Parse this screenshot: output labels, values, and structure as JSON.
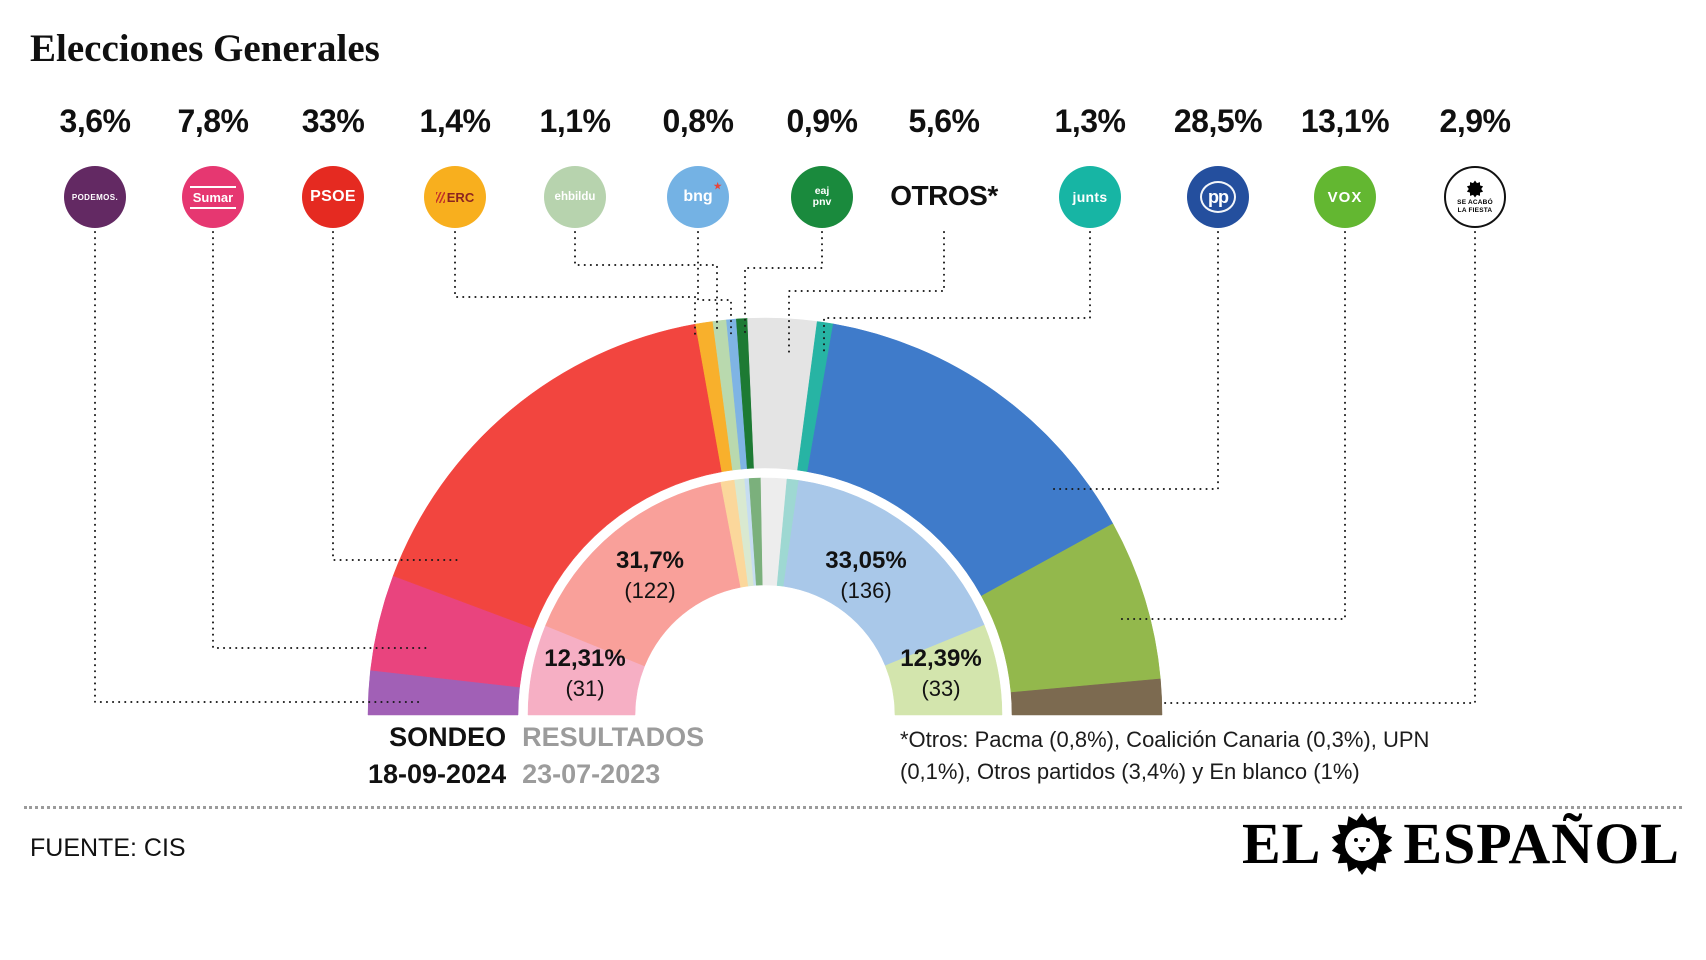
{
  "title": "Elecciones Generales",
  "parties": [
    {
      "id": "podemos",
      "name": "Podemos",
      "pct": "3,6%",
      "logo_text": "PODEMOS.",
      "logo_bg": "#632963"
    },
    {
      "id": "sumar",
      "name": "Sumar",
      "pct": "7,8%",
      "logo_text": "Sumar",
      "logo_bg": "#e63771"
    },
    {
      "id": "psoe",
      "name": "PSOE",
      "pct": "33%",
      "logo_text": "PSOE",
      "logo_bg": "#e52a21"
    },
    {
      "id": "erc",
      "name": "ERC",
      "pct": "1,4%",
      "logo_text": "ERC",
      "logo_bg": "#f8af1e"
    },
    {
      "id": "bildu",
      "name": "EH Bildu",
      "pct": "1,1%",
      "logo_text": "ehbildu",
      "logo_bg": "#b7d3ae"
    },
    {
      "id": "bng",
      "name": "BNG",
      "pct": "0,8%",
      "logo_text": "bng",
      "logo_bg": "#74b2e4"
    },
    {
      "id": "pnv",
      "name": "EAJ-PNV",
      "pct": "0,9%",
      "logo_line1": "eaj",
      "logo_line2": "pnv",
      "logo_bg": "#1a8a3d"
    },
    {
      "id": "otros",
      "name": "Otros",
      "pct": "5,6%",
      "label": "OTROS*"
    },
    {
      "id": "junts",
      "name": "Junts",
      "pct": "1,3%",
      "logo_text": "junts",
      "logo_bg": "#17b5a4"
    },
    {
      "id": "pp",
      "name": "PP",
      "pct": "28,5%",
      "logo_text": "pp",
      "logo_bg": "#244f9e"
    },
    {
      "id": "vox",
      "name": "Vox",
      "pct": "13,1%",
      "logo_text": "VOX",
      "logo_bg": "#63b731"
    },
    {
      "id": "salf",
      "name": "Se Acabó La Fiesta",
      "pct": "2,9%",
      "logo_line1": "SE ACABÓ",
      "logo_line2": "LA FIESTA",
      "logo_bg": "#ffffff"
    }
  ],
  "icons": {
    "bng_star": "★"
  },
  "chart_data": {
    "type": "half-donut",
    "title": "Elecciones Generales",
    "unit": "% de voto",
    "series": [
      {
        "name": "Sondeo 18-09-2024",
        "ring": "outer",
        "points": [
          {
            "party": "Podemos",
            "value": 3.6,
            "color": "#a160b6"
          },
          {
            "party": "Sumar",
            "value": 7.8,
            "color": "#e9447e"
          },
          {
            "party": "PSOE",
            "value": 33,
            "color": "#f2453f"
          },
          {
            "party": "ERC",
            "value": 1.4,
            "color": "#f8b02c"
          },
          {
            "party": "EH Bildu",
            "value": 1.1,
            "color": "#b9d9ae"
          },
          {
            "party": "BNG",
            "value": 0.8,
            "color": "#7fb4e4"
          },
          {
            "party": "EAJ PNV",
            "value": 0.9,
            "color": "#1d7a33"
          },
          {
            "party": "Otros",
            "value": 5.6,
            "color": "#e4e4e4"
          },
          {
            "party": "Junts",
            "value": 1.3,
            "color": "#27b4a4"
          },
          {
            "party": "PP",
            "value": 28.5,
            "color": "#3f7bca"
          },
          {
            "party": "Vox",
            "value": 13.1,
            "color": "#93b84c"
          },
          {
            "party": "SALF",
            "value": 2.9,
            "color": "#7c6a50"
          }
        ]
      },
      {
        "name": "Resultados 23-07-2023",
        "ring": "inner",
        "points": [
          {
            "party": "Sumar",
            "value": 12.31,
            "color": "#f6afc4"
          },
          {
            "party": "PSOE",
            "value": 31.7,
            "color": "#f9a09a"
          },
          {
            "party": "ERC",
            "value": 1.89,
            "color": "#fbd79b"
          },
          {
            "party": "EH Bildu",
            "value": 1.36,
            "color": "#d9e9d0"
          },
          {
            "party": "BNG",
            "value": 0.6,
            "color": "#c6ddf1"
          },
          {
            "party": "EAJ PNV",
            "value": 1.59,
            "color": "#7bb07c"
          },
          {
            "party": "Otros",
            "value": 3.51,
            "color": "#ededed"
          },
          {
            "party": "Junts",
            "value": 1.6,
            "color": "#9ed8d2"
          },
          {
            "party": "PP",
            "value": 33.05,
            "color": "#a9c8e9"
          },
          {
            "party": "Vox",
            "value": 12.39,
            "color": "#d3e5ad"
          }
        ]
      }
    ],
    "inner_ring_labels": [
      {
        "party": "PSOE",
        "pct": "31,7%",
        "seats": "(122)"
      },
      {
        "party": "PP",
        "pct": "33,05%",
        "seats": "(136)"
      },
      {
        "party": "Sumar",
        "pct": "12,31%",
        "seats": "(31)"
      },
      {
        "party": "Vox",
        "pct": "12,39%",
        "seats": "(33)"
      }
    ]
  },
  "legend": {
    "sondeo_label": "SONDEO",
    "sondeo_date": "18-09-2024",
    "resultados_label": "RESULTADOS",
    "resultados_date": "23-07-2023"
  },
  "footnote": {
    "line1": "*Otros: Pacma (0,8%), Coalición Canaria (0,3%), UPN",
    "line2": "(0,1%), Otros partidos (3,4%) y En blanco (1%)"
  },
  "source": "FUENTE: CIS",
  "brand": {
    "part1": "EL",
    "part2": "ESPAÑOL"
  }
}
